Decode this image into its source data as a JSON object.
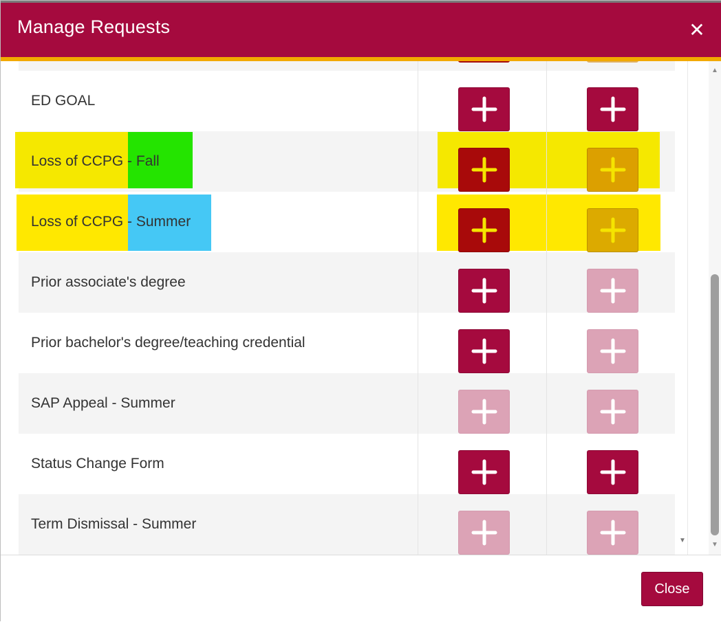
{
  "header": {
    "title": "Manage Requests",
    "close_glyph": "✕"
  },
  "colors": {
    "brand": "#a50a3e",
    "accent_bar": "#f2a900",
    "disabled_button": "#dca3b6",
    "highlight_yellow": "#f5e400",
    "highlight_green": "#24e400",
    "highlight_blue": "#45c8f5"
  },
  "rows": [
    {
      "label": "ED GOAL",
      "col1": "active",
      "col2": "active"
    },
    {
      "label": "Loss of CCPG - Fall",
      "col1": "active",
      "col2": "active"
    },
    {
      "label": "Loss of CCPG - Summer",
      "col1": "active",
      "col2": "active"
    },
    {
      "label": "Prior associate's degree",
      "col1": "active",
      "col2": "disabled"
    },
    {
      "label": "Prior bachelor's degree/teaching credential",
      "col1": "active",
      "col2": "disabled"
    },
    {
      "label": "SAP Appeal - Summer",
      "col1": "disabled",
      "col2": "disabled"
    },
    {
      "label": "Status Change Form",
      "col1": "active",
      "col2": "active"
    },
    {
      "label": "Term Dismissal - Summer",
      "col1": "disabled",
      "col2": "disabled"
    }
  ],
  "icons": {
    "add": "plus-icon",
    "close": "close-icon"
  },
  "footer": {
    "close_label": "Close"
  }
}
